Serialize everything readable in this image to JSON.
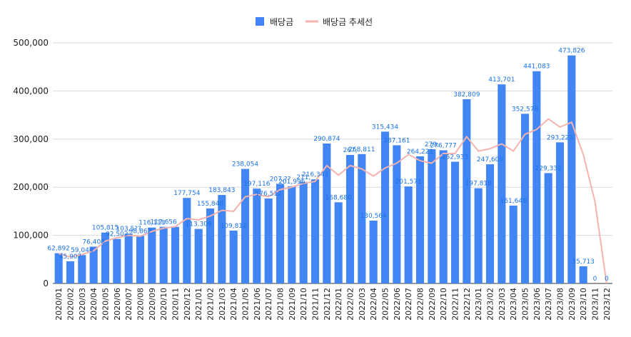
{
  "colors": {
    "bar": "#4285f4",
    "trend": "#f4b3ae",
    "label": "#1a73e8",
    "grid": "#d9d9d9"
  },
  "chart_data": {
    "type": "bar",
    "title": "",
    "xlabel": "",
    "ylabel": "",
    "ylim": [
      0,
      500000
    ],
    "y_ticks": [
      "0",
      "100,000",
      "200,000",
      "300,000",
      "400,000",
      "500,000"
    ],
    "legend": {
      "placement": "top-center",
      "bar_label": "배당금",
      "line_label": "배당금 추세선"
    },
    "grid": true,
    "categories": [
      "2020/01",
      "2020/02",
      "2020/03",
      "2020/04",
      "2020/05",
      "2020/06",
      "2020/07",
      "2020/08",
      "2020/09",
      "2020/10",
      "2020/11",
      "2020/12",
      "2021/01",
      "2021/02",
      "2021/03",
      "2021/04",
      "2021/05",
      "2021/06",
      "2021/07",
      "2021/08",
      "2021/09",
      "2021/10",
      "2021/11",
      "2021/12",
      "2022/01",
      "2022/02",
      "2022/03",
      "2022/04",
      "2022/05",
      "2022/06",
      "2022/07",
      "2022/08",
      "2022/09",
      "2022/10",
      "2022/11",
      "2022/12",
      "2023/01",
      "2023/02",
      "2023/03",
      "2023/04",
      "2023/05",
      "2023/06",
      "2023/07",
      "2023/08",
      "2023/09",
      "2023/10",
      "2023/11",
      "2023/12"
    ],
    "series": [
      {
        "name": "배당금",
        "type": "bar",
        "values": [
          62892,
          45907,
          59044,
          76408,
          105815,
          92502,
          103500,
          98862,
          116118,
          117656,
          117656,
          177754,
          113309,
          155840,
          183843,
          109812,
          238054,
          197116,
          176512,
          207000,
          201996,
          211000,
          216343,
          290874,
          168680,
          267000,
          268811,
          130564,
          315434,
          287161,
          201571,
          264221,
          279000,
          276777,
          252933,
          382809,
          197818,
          247609,
          413701,
          161648,
          352578,
          441083,
          229331,
          293223,
          473826,
          35713,
          0,
          0
        ],
        "labels": [
          "62,892",
          "45,907",
          "59,044",
          "76,408",
          "105,815",
          "92,502",
          "103,5??",
          "98,862",
          "116,118",
          "117,656",
          "",
          "177,754",
          "113,309",
          "155,840",
          "183,843",
          "109,812",
          "238,054",
          "197,116",
          "176,512",
          "207,??",
          "201,996",
          "211,",
          "216,343",
          "290,874",
          "168,680",
          "267,",
          "268,811",
          "130,564",
          "315,434",
          "287,161",
          "201,571",
          "264,221",
          "279,",
          "276,777",
          "252,933",
          "382,809",
          "197,818",
          "247,609",
          "413,701",
          "161,648",
          "352,578",
          "441,083",
          "229,331",
          "293,223",
          "473,826",
          "35,713",
          "0",
          "0"
        ]
      },
      {
        "name": "배당금 추세선",
        "type": "line",
        "values": [
          62000,
          55000,
          60000,
          68000,
          88000,
          95000,
          100000,
          98000,
          108000,
          115000,
          118000,
          135000,
          132000,
          140000,
          152000,
          150000,
          180000,
          185000,
          180000,
          195000,
          200000,
          208000,
          212000,
          245000,
          225000,
          245000,
          238000,
          223000,
          240000,
          250000,
          268000,
          255000,
          250000,
          270000,
          270000,
          305000,
          275000,
          280000,
          290000,
          275000,
          310000,
          320000,
          342000,
          325000,
          335000,
          268000,
          170000,
          0
        ]
      }
    ]
  }
}
